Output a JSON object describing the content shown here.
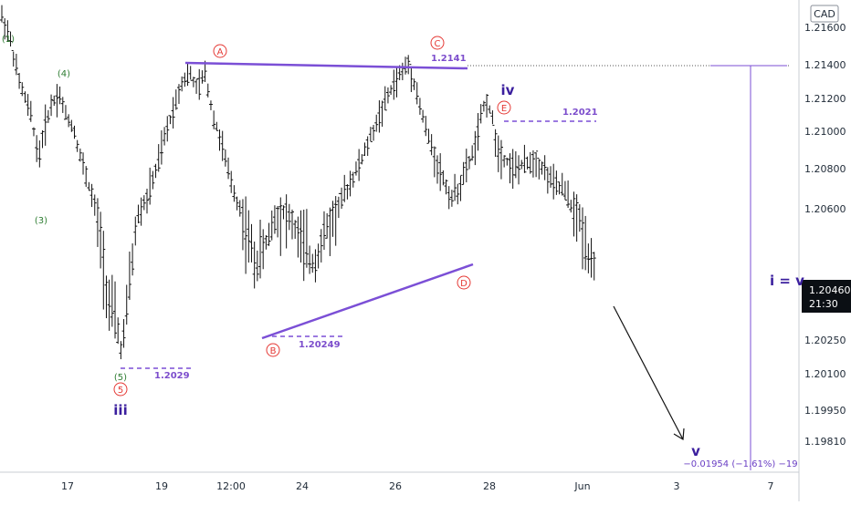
{
  "currency": "CAD",
  "price_axis": {
    "ticks": [
      "1.21600",
      "1.21400",
      "1.21200",
      "1.21000",
      "1.20800",
      "1.20600",
      "1.20250",
      "1.20100",
      "1.19950",
      "1.19810"
    ],
    "current_price": "1.20460",
    "countdown": "21:30"
  },
  "time_axis": {
    "ticks": [
      "17",
      "19",
      "12:00",
      "24",
      "26",
      "28",
      "Jun",
      "3",
      "7"
    ]
  },
  "annotations": {
    "wave_1": "(1)",
    "wave_3": "(3)",
    "wave_4": "(4)",
    "wave_5": "(5)",
    "wave_5_circle": "5",
    "wave_iii": "iii",
    "wave_A": "A",
    "wave_B": "B",
    "wave_C": "C",
    "wave_D": "D",
    "wave_E": "E",
    "wave_iv": "iv",
    "wave_v": "v",
    "i_equals_v": "i = v",
    "level_1": "1.2029",
    "level_2": "1.20249",
    "level_3": "1.2141",
    "level_4": "1.2021",
    "measure": "−0.01954 (−1.61%) −19"
  },
  "chart_data": {
    "type": "candlestick",
    "currency": "CAD",
    "ylim": [
      1.1975,
      1.2172
    ],
    "y_tick_values": [
      1.216,
      1.214,
      1.212,
      1.21,
      1.208,
      1.206,
      1.2025,
      1.201,
      1.1995,
      1.1981
    ],
    "x_ticks": [
      "17",
      "19",
      "12:00",
      "24",
      "26",
      "28",
      "Jun",
      "3",
      "7"
    ],
    "price_path": [
      [
        0,
        1.2166
      ],
      [
        8,
        1.2155
      ],
      [
        18,
        1.213
      ],
      [
        30,
        1.211
      ],
      [
        38,
        1.2085
      ],
      [
        44,
        1.2102
      ],
      [
        52,
        1.2118
      ],
      [
        60,
        1.2122
      ],
      [
        66,
        1.211
      ],
      [
        74,
        1.2102
      ],
      [
        82,
        1.2085
      ],
      [
        92,
        1.2068
      ],
      [
        102,
        1.2052
      ],
      [
        110,
        1.2035
      ],
      [
        118,
        1.203
      ],
      [
        124,
        1.202
      ],
      [
        132,
        1.204
      ],
      [
        140,
        1.2058
      ],
      [
        150,
        1.2065
      ],
      [
        160,
        1.208
      ],
      [
        170,
        1.21
      ],
      [
        178,
        1.2115
      ],
      [
        186,
        1.213
      ],
      [
        194,
        1.2135
      ],
      [
        202,
        1.2125
      ],
      [
        210,
        1.2135
      ],
      [
        218,
        1.211
      ],
      [
        226,
        1.2095
      ],
      [
        234,
        1.2078
      ],
      [
        242,
        1.2065
      ],
      [
        252,
        1.2055
      ],
      [
        262,
        1.2045
      ],
      [
        272,
        1.205
      ],
      [
        282,
        1.2058
      ],
      [
        292,
        1.206
      ],
      [
        302,
        1.2055
      ],
      [
        312,
        1.205
      ],
      [
        322,
        1.2045
      ],
      [
        332,
        1.2052
      ],
      [
        342,
        1.2058
      ],
      [
        352,
        1.2065
      ],
      [
        362,
        1.2075
      ],
      [
        372,
        1.2085
      ],
      [
        382,
        1.2098
      ],
      [
        392,
        1.2112
      ],
      [
        402,
        1.2125
      ],
      [
        412,
        1.2135
      ],
      [
        420,
        1.214
      ],
      [
        426,
        1.213
      ],
      [
        432,
        1.2115
      ],
      [
        440,
        1.2098
      ],
      [
        448,
        1.2085
      ],
      [
        456,
        1.2075
      ],
      [
        464,
        1.2065
      ],
      [
        472,
        1.207
      ],
      [
        480,
        1.208
      ],
      [
        488,
        1.209
      ],
      [
        494,
        1.2105
      ],
      [
        500,
        1.212
      ],
      [
        506,
        1.211
      ],
      [
        512,
        1.209
      ],
      [
        520,
        1.2085
      ],
      [
        530,
        1.208
      ],
      [
        540,
        1.2082
      ],
      [
        550,
        1.2085
      ],
      [
        560,
        1.208
      ],
      [
        570,
        1.2072
      ],
      [
        580,
        1.207
      ],
      [
        588,
        1.2062
      ],
      [
        596,
        1.2058
      ],
      [
        604,
        1.205
      ],
      [
        610,
        1.2046
      ]
    ],
    "levels": [
      {
        "label": "1.2029",
        "value": 1.2029
      },
      {
        "label": "1.20249",
        "value": 1.20249
      },
      {
        "label": "1.2141",
        "value": 1.2141
      },
      {
        "label": "1.2021",
        "value": 1.2021
      }
    ],
    "last_price": 1.2046,
    "projection": {
      "label": "v",
      "measure": "−0.01954 (−1.61%) −19"
    }
  }
}
